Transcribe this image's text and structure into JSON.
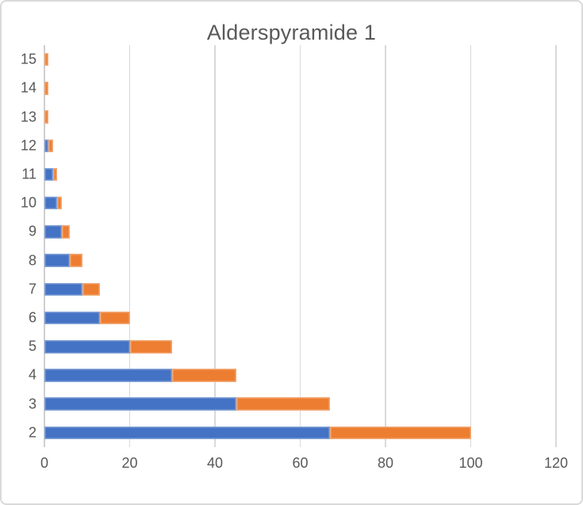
{
  "frame": {
    "background": "#ffffff",
    "border_color": "#d9d9d9"
  },
  "chart_data": {
    "type": "bar",
    "orientation": "horizontal",
    "stacked": true,
    "title": "Alderspyramide 1",
    "categories": [
      15,
      14,
      13,
      12,
      11,
      10,
      9,
      8,
      7,
      6,
      5,
      4,
      3,
      2
    ],
    "series": [
      {
        "id": "series-blue",
        "color": "#4472C4",
        "values": [
          0,
          0,
          0,
          1,
          2,
          3,
          4,
          6,
          9,
          13,
          20,
          30,
          45,
          67
        ]
      },
      {
        "id": "series-orange",
        "color": "#ED7D31",
        "values": [
          1,
          1,
          1,
          1,
          1,
          1,
          2,
          3,
          4,
          7,
          10,
          15,
          22,
          33
        ]
      }
    ],
    "xlabel": "",
    "ylabel": "",
    "xlim": [
      0,
      120
    ],
    "x_ticks": [
      0,
      20,
      40,
      60,
      80,
      100,
      120
    ],
    "grid": "vertical",
    "legend": "none",
    "colors": {
      "gridline": "#d9d9d9",
      "axis_line": "#cfcfcf",
      "label_text": "#595959",
      "title_text": "#595959"
    }
  }
}
